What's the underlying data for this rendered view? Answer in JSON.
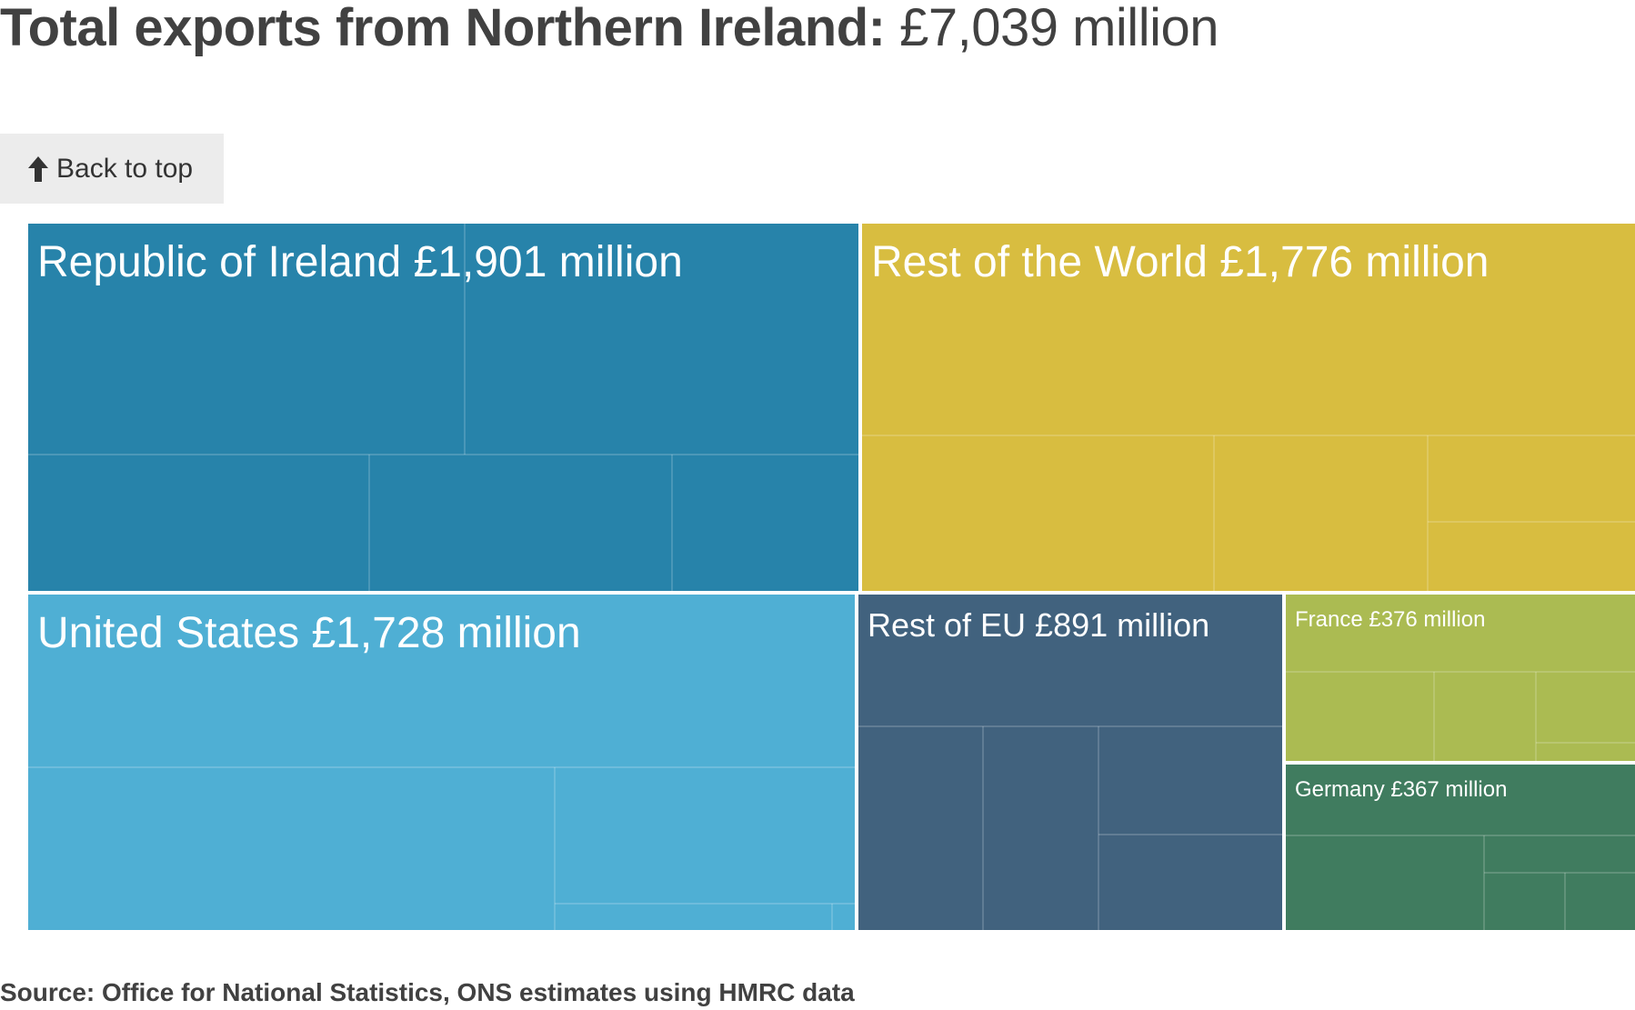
{
  "header": {
    "title_bold": "Total exports from Northern Ireland:",
    "title_value": "£7,039 million"
  },
  "back_to_top": {
    "label": "Back to top",
    "icon": "arrow-up-icon"
  },
  "footer": {
    "source": "Source: Office for National Statistics, ONS estimates using HMRC data"
  },
  "chart_data": {
    "type": "treemap",
    "title": "Total exports from Northern Ireland: £7,039 million",
    "total": 7039,
    "unit": "£ million",
    "groups": [
      {
        "name": "Republic of Ireland",
        "value": 1901,
        "label": "Republic of Ireland £1,901 million",
        "color": "#2783aa"
      },
      {
        "name": "Rest of the World",
        "value": 1776,
        "label": "Rest of the World £1,776 million",
        "color": "#d8bd40"
      },
      {
        "name": "United States",
        "value": 1728,
        "label": "United States £1,728 million",
        "color": "#4fafd4"
      },
      {
        "name": "Rest of EU",
        "value": 891,
        "label": "Rest of EU £891 million",
        "color": "#41627e"
      },
      {
        "name": "France",
        "value": 376,
        "label": "France £376 million",
        "color": "#abbb52"
      },
      {
        "name": "Germany",
        "value": 367,
        "label": "Germany £367 million",
        "color": "#407c5f"
      }
    ]
  }
}
